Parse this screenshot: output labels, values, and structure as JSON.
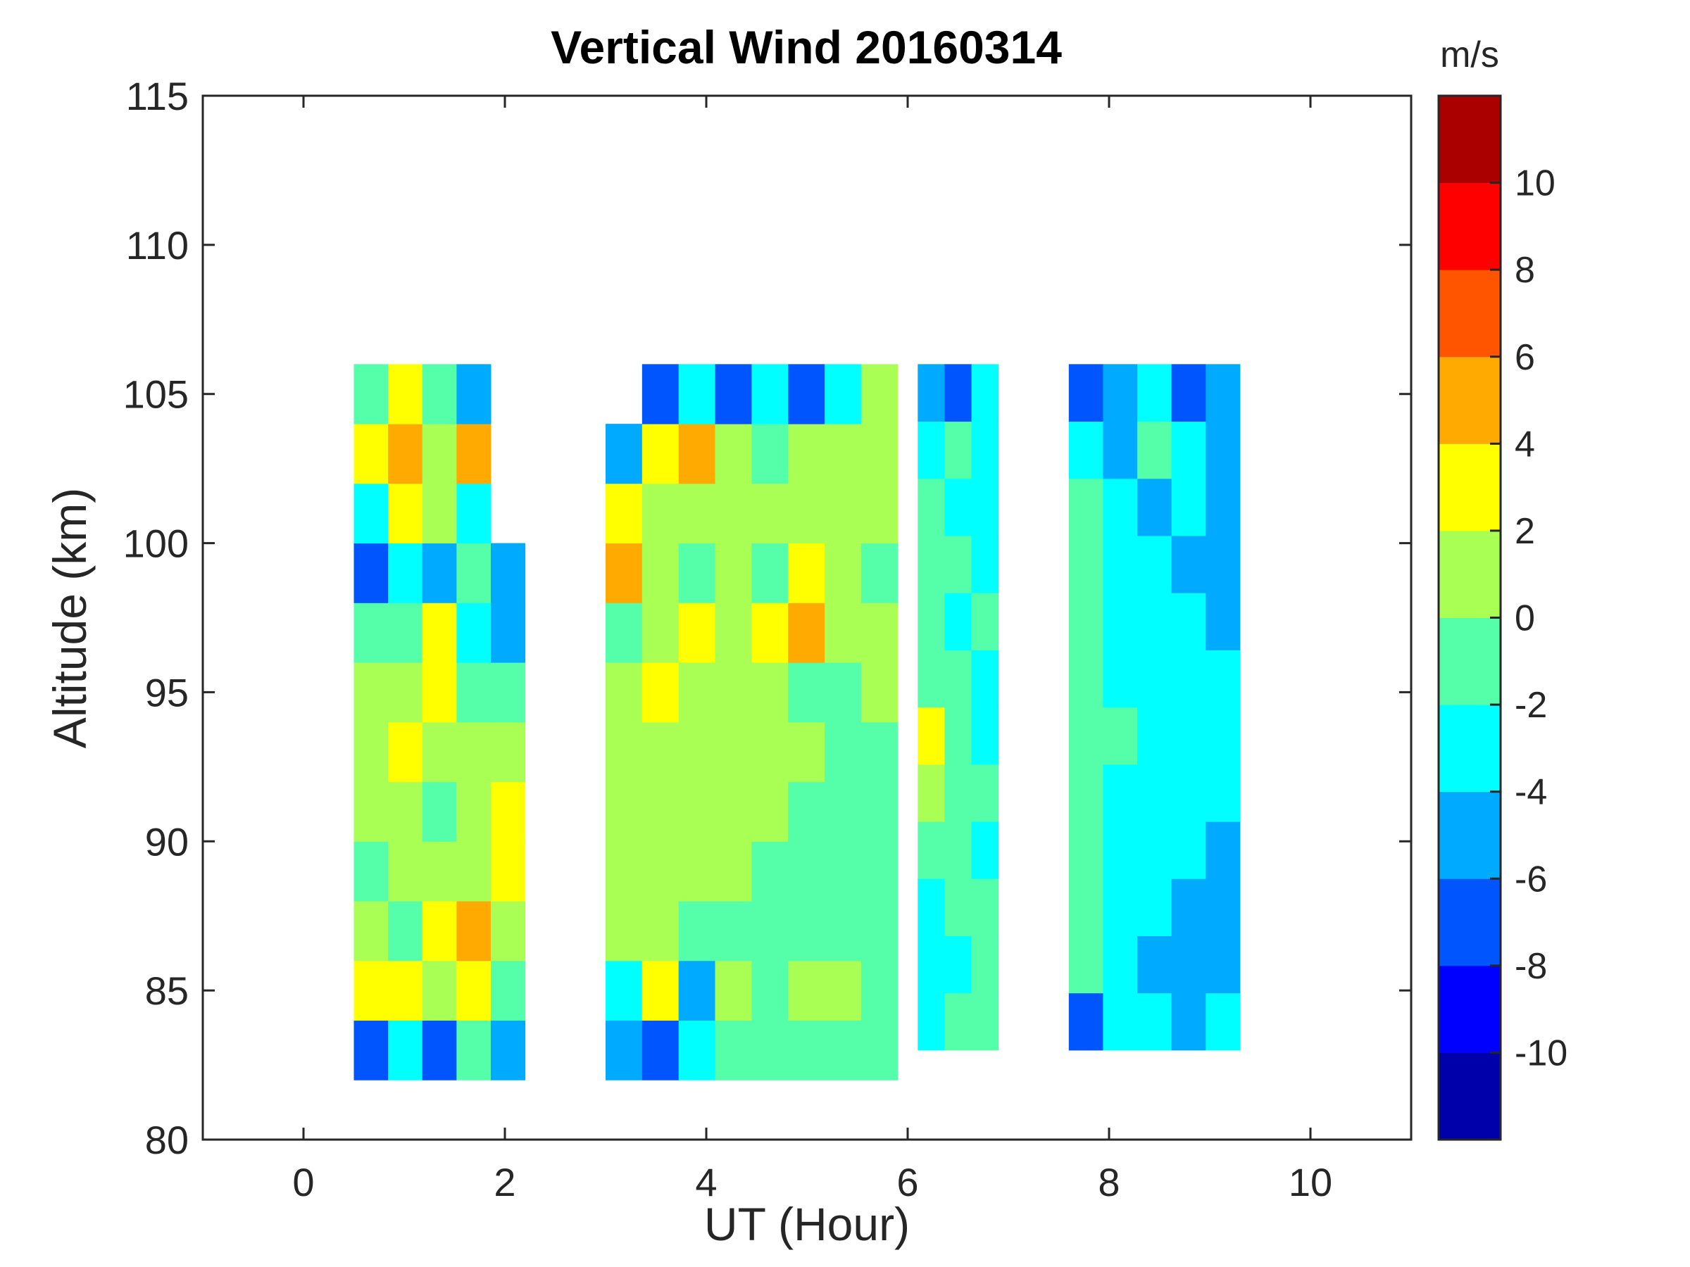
{
  "chart_data": {
    "type": "contour",
    "title": "Vertical Wind 20160314",
    "xlabel": "UT (Hour)",
    "ylabel": "Altitude (km)",
    "xlim": [
      -1,
      11
    ],
    "ylim": [
      80,
      115
    ],
    "xticks": [
      0,
      2,
      4,
      6,
      8,
      10
    ],
    "yticks": [
      80,
      85,
      90,
      95,
      100,
      105,
      110,
      115
    ],
    "colorbar": {
      "label": "m/s",
      "range": [
        -12,
        12
      ],
      "levels": [
        -12,
        -10,
        -8,
        -6,
        -4,
        -2,
        0,
        2,
        4,
        6,
        8,
        10,
        12
      ],
      "ticks": [
        -10,
        -8,
        -6,
        -4,
        -2,
        0,
        2,
        4,
        6,
        8,
        10
      ],
      "colors": [
        "#0000aa",
        "#0000ff",
        "#0055ff",
        "#00aaff",
        "#00ffff",
        "#55ffaa",
        "#aaff55",
        "#ffff00",
        "#ffaa00",
        "#ff5500",
        "#ff0000",
        "#aa0000"
      ]
    },
    "segments": [
      {
        "ut": [
          0.5,
          2.2
        ],
        "alt": [
          82,
          106
        ],
        "values": [
          [
            -8,
            -4,
            -8,
            -2,
            -6
          ],
          [
            2,
            3,
            1,
            3,
            -2
          ],
          [
            1,
            -2,
            2,
            4,
            1
          ],
          [
            -1,
            1,
            0,
            1,
            3
          ],
          [
            0,
            1,
            -1,
            1,
            3
          ],
          [
            0,
            3,
            1,
            0,
            1
          ],
          [
            1,
            1,
            3,
            -1,
            -1
          ],
          [
            -2,
            -1,
            3,
            -4,
            -6
          ],
          [
            -8,
            -4,
            -6,
            -2,
            -6
          ],
          [
            -4,
            2,
            0,
            -3,
            null
          ],
          [
            2,
            5,
            1,
            4,
            null
          ],
          [
            -1,
            3,
            -2,
            -6,
            null
          ]
        ]
      },
      {
        "ut": [
          3.0,
          5.9
        ],
        "alt": [
          82,
          106
        ],
        "values": [
          [
            -6,
            -8,
            -4,
            -1,
            -1,
            -1,
            -1,
            -1
          ],
          [
            -3,
            3,
            -6,
            0,
            -1,
            1,
            0,
            -1
          ],
          [
            1,
            0,
            -1,
            -1,
            -1,
            -1,
            -1,
            -1
          ],
          [
            1,
            1,
            0,
            1,
            -1,
            -1,
            -1,
            -1
          ],
          [
            1,
            1,
            1,
            0,
            1,
            -1,
            -1,
            -1
          ],
          [
            1,
            1,
            1,
            1,
            0,
            1,
            -1,
            -1
          ],
          [
            1,
            3,
            1,
            1,
            1,
            -1,
            -1,
            1
          ],
          [
            -1,
            1,
            3,
            1,
            3,
            5,
            1,
            1
          ],
          [
            5,
            1,
            -1,
            1,
            -1,
            3,
            1,
            -1
          ],
          [
            3,
            1,
            1,
            1,
            1,
            1,
            1,
            1
          ],
          [
            -6,
            3,
            5,
            1,
            -1,
            1,
            1,
            1
          ],
          [
            null,
            -8,
            -4,
            -8,
            -4,
            -8,
            -4,
            1
          ]
        ]
      },
      {
        "ut": [
          6.1,
          6.9
        ],
        "alt": [
          83,
          106
        ],
        "values": [
          [
            -3,
            -1,
            -1
          ],
          [
            -4,
            -3,
            -1
          ],
          [
            -3,
            -1,
            -1
          ],
          [
            -1,
            -1,
            -3
          ],
          [
            1,
            -1,
            -1
          ],
          [
            3,
            -1,
            -3
          ],
          [
            -1,
            -1,
            -3
          ],
          [
            -1,
            -3,
            -1
          ],
          [
            -1,
            -1,
            -3
          ],
          [
            -1,
            -3,
            -3
          ],
          [
            -3,
            -1,
            -3
          ],
          [
            -6,
            -8,
            -3
          ]
        ]
      },
      {
        "ut": [
          7.6,
          9.3
        ],
        "alt": [
          83,
          106
        ],
        "values": [
          [
            -8,
            -3,
            -3,
            -5,
            -3
          ],
          [
            -1,
            -3,
            -5,
            -5,
            -5
          ],
          [
            -1,
            -3,
            -3,
            -5,
            -5
          ],
          [
            -1,
            -3,
            -3,
            -3,
            -5
          ],
          [
            -1,
            -3,
            -3,
            -3,
            -3
          ],
          [
            -1,
            -1,
            -3,
            -3,
            -3
          ],
          [
            -1,
            -3,
            -3,
            -3,
            -3
          ],
          [
            -1,
            -3,
            -3,
            -3,
            -5
          ],
          [
            -1,
            -3,
            -3,
            -5,
            -5
          ],
          [
            -1,
            -3,
            -5,
            -3,
            -5
          ],
          [
            -3,
            -5,
            -1,
            -3,
            -5
          ],
          [
            -8,
            -5,
            -3,
            -8,
            -5
          ]
        ]
      }
    ]
  }
}
